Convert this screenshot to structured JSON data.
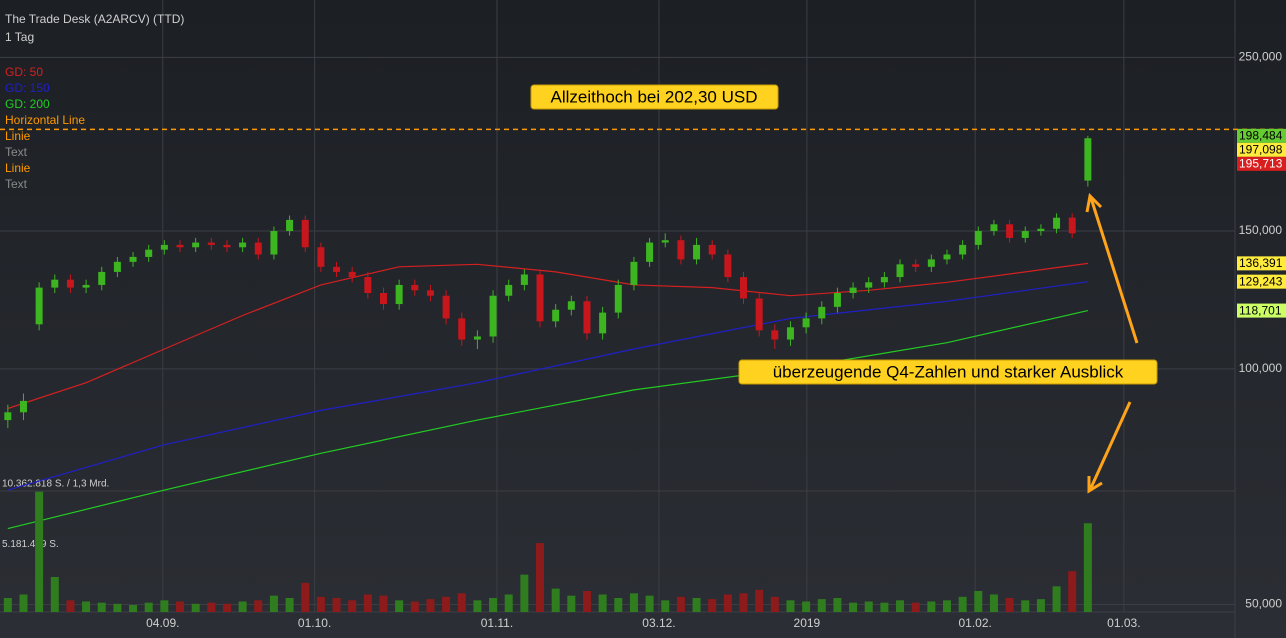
{
  "chart_data": {
    "type": "candlestick",
    "title": "The Trade Desk (A2ARCV) (TTD)",
    "subtitle": "1 Tag",
    "log_scale": true,
    "grid": true,
    "categories": [
      null,
      null,
      null,
      null,
      null,
      null,
      null,
      null,
      null,
      null,
      null,
      null,
      null,
      null,
      null,
      null,
      null,
      null,
      null,
      null,
      null,
      null,
      null,
      null,
      null,
      null,
      null,
      null,
      null,
      null,
      null,
      null,
      null,
      null,
      null,
      null,
      null,
      null,
      null,
      null,
      null,
      null,
      null,
      null,
      null,
      null,
      null,
      null,
      null,
      null,
      null,
      null,
      null,
      null,
      null,
      null,
      null,
      null,
      null,
      null,
      null,
      null,
      null,
      null,
      null,
      null,
      null,
      null,
      null,
      null
    ],
    "xlim": [
      -0.5,
      78.4
    ],
    "xticks": [
      {
        "value": 9.9,
        "label": "04.09."
      },
      {
        "value": 19.6,
        "label": "01.10."
      },
      {
        "value": 31.25,
        "label": "01.11."
      },
      {
        "value": 41.6,
        "label": "03.12."
      },
      {
        "value": 51.05,
        "label": "2019"
      },
      {
        "value": 61.8,
        "label": "01.02."
      },
      {
        "value": 71.3,
        "label": "01.03."
      }
    ],
    "ylim": [
      45.3,
      296
    ],
    "yticks": [
      {
        "value": 50,
        "label": "50,000"
      },
      {
        "value": 100,
        "label": "100,000"
      },
      {
        "value": 150,
        "label": "150,000"
      },
      {
        "value": 250,
        "label": "250,000"
      }
    ],
    "up_color": "#3cb521",
    "down_color": "#c8161d",
    "open": [
      86,
      88,
      114,
      127,
      130,
      127,
      128,
      133,
      137,
      139,
      142,
      144,
      143,
      145,
      144,
      143,
      145,
      140,
      150,
      155,
      143,
      135,
      133,
      131,
      125,
      121,
      128,
      126,
      124,
      116,
      109,
      110,
      124,
      128,
      132,
      115,
      119,
      122,
      111,
      118,
      128,
      137,
      145,
      146,
      138,
      144,
      140,
      131,
      123,
      112,
      109,
      113,
      116,
      120,
      125,
      127,
      129,
      131,
      136,
      135,
      138,
      140,
      144,
      150,
      153,
      147,
      150,
      151,
      156,
      174
    ],
    "high": [
      90,
      93,
      129,
      132,
      132,
      130,
      135,
      139,
      141,
      144,
      146,
      146,
      147,
      147,
      146,
      147,
      147,
      152,
      157,
      157,
      145,
      137,
      135,
      133,
      127,
      130,
      130,
      128,
      126,
      118,
      112,
      126,
      130,
      134,
      134,
      121,
      124,
      124,
      120,
      130,
      139,
      147,
      149,
      148,
      147,
      146,
      142,
      133,
      125,
      114,
      115,
      118,
      122,
      127,
      129,
      131,
      133,
      138,
      138,
      140,
      142,
      146,
      152,
      155,
      155,
      152,
      153,
      158,
      158,
      198.484
    ],
    "low": [
      84,
      86,
      112,
      125,
      125,
      125,
      126,
      131,
      135,
      137,
      140,
      141,
      141,
      142,
      141,
      141,
      138,
      138,
      148,
      141,
      133,
      131,
      129,
      123,
      119,
      119,
      124,
      122,
      114,
      107,
      106,
      108,
      122,
      126,
      113,
      113,
      117,
      109,
      109,
      116,
      126,
      135,
      143,
      136,
      136,
      138,
      129,
      121,
      110,
      106,
      107,
      111,
      114,
      118,
      123,
      125,
      127,
      129,
      133,
      133,
      136,
      138,
      142,
      148,
      145,
      145,
      148,
      149,
      147,
      171
    ],
    "close": [
      88,
      91,
      127,
      130,
      127,
      128,
      133,
      137,
      139,
      142,
      144,
      143,
      145,
      144,
      143,
      145,
      140,
      150,
      155,
      143,
      135,
      133,
      131,
      125,
      121,
      128,
      126,
      124,
      116,
      109,
      110,
      124,
      128,
      132,
      115,
      119,
      122,
      111,
      118,
      128,
      137,
      145,
      146,
      138,
      144,
      140,
      131,
      123,
      112,
      109,
      113,
      116,
      120,
      125,
      127,
      129,
      131,
      136,
      135,
      138,
      140,
      144,
      150,
      153,
      147,
      150,
      151,
      156,
      149,
      197.098
    ],
    "volume": {
      "ylim": [
        0,
        10362818
      ],
      "yticks": [
        {
          "value": 5181409,
          "label": "5.181.409 S."
        },
        {
          "value": 10362818,
          "label": "10.362.818 S. / 1,3 Mrd."
        }
      ],
      "up_color": "#2f7d1f",
      "down_color": "#8e1b1b",
      "values": [
        1200000,
        1500000,
        10300000,
        3000000,
        1000000,
        900000,
        800000,
        700000,
        600000,
        800000,
        1000000,
        900000,
        700000,
        800000,
        700000,
        900000,
        1000000,
        1400000,
        1200000,
        2500000,
        1300000,
        1200000,
        1000000,
        1500000,
        1400000,
        1000000,
        900000,
        1100000,
        1300000,
        1600000,
        1000000,
        1200000,
        1500000,
        3200000,
        5900000,
        2000000,
        1400000,
        1800000,
        1500000,
        1200000,
        1600000,
        1400000,
        1000000,
        1300000,
        1200000,
        1100000,
        1500000,
        1600000,
        1900000,
        1300000,
        1000000,
        900000,
        1100000,
        1200000,
        800000,
        900000,
        800000,
        1000000,
        800000,
        900000,
        1000000,
        1300000,
        1800000,
        1500000,
        1200000,
        1000000,
        1100000,
        2200000,
        3500000,
        7600000
      ]
    },
    "moving_averages": [
      {
        "name": "GD: 50",
        "color": "#d42020",
        "label_color": "#ffeb3b",
        "x": [
          0,
          5,
          10,
          15,
          20,
          25,
          30,
          35,
          40,
          45,
          50,
          55,
          60,
          65,
          69
        ],
        "values": [
          89,
          96,
          106,
          117,
          128,
          135,
          136,
          133,
          128,
          127,
          124,
          126,
          129,
          133,
          136.391
        ],
        "value_labels": [
          null,
          null,
          null,
          null,
          null,
          null,
          null,
          null,
          null,
          null,
          null,
          null,
          null,
          null,
          "136,391"
        ]
      },
      {
        "name": "GD: 150",
        "color": "#2020c8",
        "label_color": "#ffeb3b",
        "x": [
          0,
          10,
          20,
          30,
          40,
          50,
          60,
          69
        ],
        "values": [
          70,
          80,
          88.5,
          96,
          106,
          116,
          122,
          129.243
        ],
        "value_labels": [
          null,
          null,
          null,
          null,
          null,
          null,
          null,
          "129,243"
        ]
      },
      {
        "name": "GD: 200",
        "color": "#22cc22",
        "label_color": "#ccff66",
        "x": [
          0,
          10,
          20,
          30,
          40,
          50,
          60,
          69
        ],
        "values": [
          62.5,
          70,
          78,
          86,
          94,
          100,
          108,
          118.701
        ],
        "value_labels": [
          null,
          null,
          null,
          null,
          null,
          null,
          null,
          "118,701"
        ]
      }
    ],
    "horizontal_line": {
      "name": "Horizontal Line",
      "value": 202.3,
      "color": "#ff9900"
    },
    "legend_extra": [
      {
        "text": "Linie",
        "color": "#ff9900"
      },
      {
        "text": "Text",
        "color": "#8a8a8a"
      },
      {
        "text": "Linie",
        "color": "#ff9900"
      },
      {
        "text": "Text",
        "color": "#8a8a8a"
      }
    ],
    "quotes": [
      {
        "value": 198.484,
        "label": "198,484",
        "color": "#66cc33",
        "text_color": "#000"
      },
      {
        "value": 197.098,
        "label": "197,098",
        "color": "#ffeb3b",
        "text_color": "#000"
      },
      {
        "value": 195.713,
        "label": "195,713",
        "color": "#d81e1e",
        "text_color": "#fff"
      }
    ],
    "annotations": [
      "Allzeithoch bei 202,30 USD",
      "überzeugende Q4-Zahlen und starker Ausblick"
    ]
  }
}
